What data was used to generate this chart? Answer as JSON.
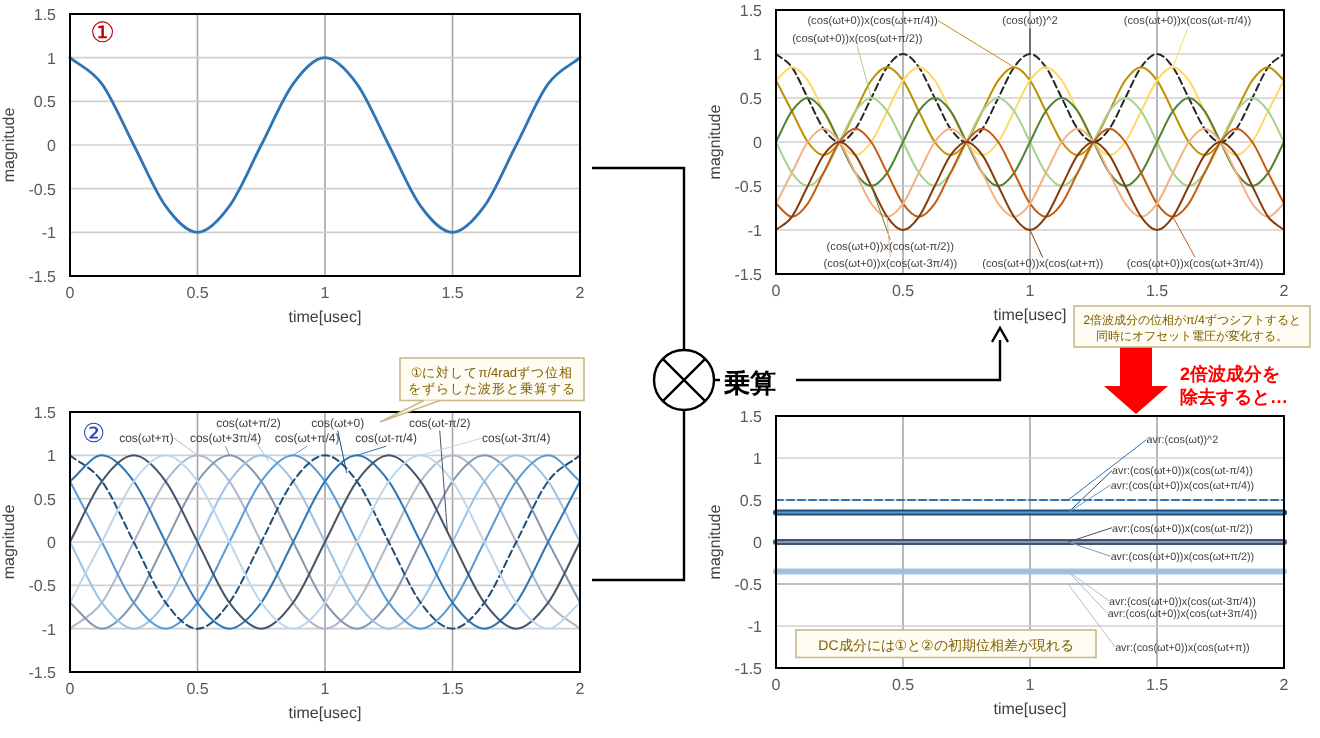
{
  "chart_data": [
    {
      "type": "line",
      "xlabel": "time[usec]",
      "ylabel": "magnitude",
      "xlim": [
        0,
        2
      ],
      "ylim": [
        -1.5,
        1.5
      ],
      "xticks": [
        0,
        0.5,
        1,
        1.5,
        2
      ],
      "yticks": [
        -1.5,
        -1,
        -0.5,
        0,
        0.5,
        1,
        1.5
      ],
      "grid": true,
      "marker": "none",
      "annotations": [
        "①"
      ],
      "x": [
        0,
        0.125,
        0.25,
        0.375,
        0.5,
        0.625,
        0.75,
        0.875,
        1,
        1.125,
        1.25,
        1.375,
        1.5,
        1.625,
        1.75,
        1.875,
        2
      ],
      "series": [
        {
          "color": "#2e75b6",
          "line_style": "solid",
          "values": [
            1,
            0.7,
            0,
            -0.7,
            -1,
            -0.7,
            0,
            0.7,
            1,
            0.7,
            0,
            -0.7,
            -1,
            -0.7,
            0,
            0.7,
            1
          ]
        }
      ]
    },
    {
      "type": "line",
      "xlabel": "time[usec]",
      "ylabel": "magnitude",
      "xlim": [
        0,
        2
      ],
      "ylim": [
        -1.5,
        1.5
      ],
      "xticks": [
        0,
        0.5,
        1,
        1.5,
        2
      ],
      "yticks": [
        -1.5,
        -1,
        -0.5,
        0,
        0.5,
        1,
        1.5
      ],
      "grid": true,
      "marker": "none",
      "annotations": [
        "②",
        "①に対してπ/4radずつ位相をずらした波形と乗算する",
        "乗算"
      ],
      "x": [
        0,
        0.125,
        0.25,
        0.375,
        0.5,
        0.625,
        0.75,
        0.875,
        1,
        1.125,
        1.25,
        1.375,
        1.5,
        1.625,
        1.75,
        1.875,
        2
      ],
      "series": [
        {
          "name": "cos(ωt+π)",
          "color": "#adb9ca",
          "line_style": "solid",
          "values": [
            -1,
            -0.7,
            0,
            0.7,
            1,
            0.7,
            0,
            -0.7,
            -1,
            -0.7,
            0,
            0.7,
            1,
            0.7,
            0,
            -0.7,
            -1
          ]
        },
        {
          "name": "cos(ωt+3π/4)",
          "color": "#8497b0",
          "line_style": "solid",
          "values": [
            -0.7,
            -1,
            -0.7,
            0,
            0.7,
            1,
            0.7,
            0,
            -0.7,
            -1,
            -0.7,
            0,
            0.7,
            1,
            0.7,
            0,
            -0.7
          ]
        },
        {
          "name": "cos(ωt+π/2)",
          "color": "#9dc3e6",
          "line_style": "solid",
          "values": [
            0,
            -0.7,
            -1,
            -0.7,
            0,
            0.7,
            1,
            0.7,
            0,
            -0.7,
            -1,
            -0.7,
            0,
            0.7,
            1,
            0.7,
            0
          ]
        },
        {
          "name": "cos(ωt+π/4)",
          "color": "#5b9bd5",
          "line_style": "solid",
          "values": [
            0.7,
            0,
            -0.7,
            -1,
            -0.7,
            0,
            0.7,
            1,
            0.7,
            0,
            -0.7,
            -1,
            -0.7,
            0,
            0.7,
            1,
            0.7
          ]
        },
        {
          "name": "cos(ωt+0)",
          "color": "#1f4e79",
          "line_style": "dashed",
          "values": [
            1,
            0.7,
            0,
            -0.7,
            -1,
            -0.7,
            0,
            0.7,
            1,
            0.7,
            0,
            -0.7,
            -1,
            -0.7,
            0,
            0.7,
            1
          ]
        },
        {
          "name": "cos(ωt-π/4)",
          "color": "#2e75b6",
          "line_style": "solid",
          "values": [
            0.7,
            1,
            0.7,
            0,
            -0.7,
            -1,
            -0.7,
            0,
            0.7,
            1,
            0.7,
            0,
            -0.7,
            -1,
            -0.7,
            0,
            0.7
          ]
        },
        {
          "name": "cos(ωt-π/2)",
          "color": "#44546a",
          "line_style": "solid",
          "values": [
            0,
            0.7,
            1,
            0.7,
            0,
            -0.7,
            -1,
            -0.7,
            0,
            0.7,
            1,
            0.7,
            0,
            -0.7,
            -1,
            -0.7,
            0
          ]
        },
        {
          "name": "cos(ωt-3π/4)",
          "color": "#bdd7ee",
          "line_style": "solid",
          "values": [
            -0.7,
            0,
            0.7,
            1,
            0.7,
            0,
            -0.7,
            -1,
            -0.7,
            0,
            0.7,
            1,
            0.7,
            0,
            -0.7,
            -1,
            -0.7
          ]
        }
      ]
    },
    {
      "type": "line",
      "xlabel": "time[usec]",
      "ylabel": "magnitude",
      "xlim": [
        0,
        2
      ],
      "ylim": [
        -1.5,
        1.5
      ],
      "xticks": [
        0,
        0.5,
        1,
        1.5,
        2
      ],
      "yticks": [
        -1.5,
        -1,
        -0.5,
        0,
        0.5,
        1,
        1.5
      ],
      "grid": true,
      "marker": "none",
      "annotations": [
        "2倍波成分の位相がπ/4ずつシフトすると同時にオフセット電圧が変化する。"
      ],
      "x": [
        0,
        0.0625,
        0.125,
        0.1875,
        0.25,
        0.3125,
        0.375,
        0.4375,
        0.5,
        0.5625,
        0.625,
        0.6875,
        0.75,
        0.8125,
        0.875,
        0.9375,
        1,
        1.0625,
        1.125,
        1.1875,
        1.25,
        1.3125,
        1.375,
        1.4375,
        1.5,
        1.5625,
        1.625,
        1.6875,
        1.75,
        1.8125,
        1.875,
        1.9375,
        2
      ],
      "series": [
        {
          "name": "(cos(ωt))^2",
          "color": "#262626",
          "line_style": "dashed",
          "values": [
            1,
            0.85,
            0.5,
            0.15,
            0,
            0.15,
            0.5,
            0.85,
            1,
            0.85,
            0.5,
            0.15,
            0,
            0.15,
            0.5,
            0.85,
            1,
            0.85,
            0.5,
            0.15,
            0,
            0.15,
            0.5,
            0.85,
            1,
            0.85,
            0.5,
            0.15,
            0,
            0.15,
            0.5,
            0.85,
            1
          ]
        },
        {
          "name": "(cos(ωt+0))x(cos(ωt+π/4))",
          "color": "#bf9000",
          "line_style": "solid",
          "values": [
            0.7,
            0.35,
            0,
            -0.15,
            0,
            0.35,
            0.7,
            0.85,
            0.7,
            0.35,
            0,
            -0.15,
            0,
            0.35,
            0.7,
            0.85,
            0.7,
            0.35,
            0,
            -0.15,
            0,
            0.35,
            0.7,
            0.85,
            0.7,
            0.35,
            0,
            -0.15,
            0,
            0.35,
            0.7,
            0.85,
            0.7
          ]
        },
        {
          "name": "(cos(ωt+0))x(cos(ωt-π/4))",
          "color": "#ffd966",
          "line_style": "solid",
          "values": [
            0.7,
            0.85,
            0.7,
            0.35,
            0,
            -0.15,
            0,
            0.35,
            0.7,
            0.85,
            0.7,
            0.35,
            0,
            -0.15,
            0,
            0.35,
            0.7,
            0.85,
            0.7,
            0.35,
            0,
            -0.15,
            0,
            0.35,
            0.7,
            0.85,
            0.7,
            0.35,
            0,
            -0.15,
            0,
            0.35,
            0.7
          ]
        },
        {
          "name": "(cos(ωt+0))x(cos(ωt+π/2))",
          "color": "#a9d18e",
          "line_style": "solid",
          "values": [
            0,
            -0.35,
            -0.5,
            -0.35,
            0,
            0.35,
            0.5,
            0.35,
            0,
            -0.35,
            -0.5,
            -0.35,
            0,
            0.35,
            0.5,
            0.35,
            0,
            -0.35,
            -0.5,
            -0.35,
            0,
            0.35,
            0.5,
            0.35,
            0,
            -0.35,
            -0.5,
            -0.35,
            0,
            0.35,
            0.5,
            0.35,
            0
          ]
        },
        {
          "name": "(cos(ωt+0))x(cos(ωt-π/2))",
          "color": "#548235",
          "line_style": "solid",
          "values": [
            0,
            0.35,
            0.5,
            0.35,
            0,
            -0.35,
            -0.5,
            -0.35,
            0,
            0.35,
            0.5,
            0.35,
            0,
            -0.35,
            -0.5,
            -0.35,
            0,
            0.35,
            0.5,
            0.35,
            0,
            -0.35,
            -0.5,
            -0.35,
            0,
            0.35,
            0.5,
            0.35,
            0,
            -0.35,
            -0.5,
            -0.35,
            0
          ]
        },
        {
          "name": "(cos(ωt+0))x(cos(ωt+3π/4))",
          "color": "#c55a11",
          "line_style": "solid",
          "values": [
            -0.7,
            -0.85,
            -0.7,
            -0.35,
            0,
            0.15,
            0,
            -0.35,
            -0.7,
            -0.85,
            -0.7,
            -0.35,
            0,
            0.15,
            0,
            -0.35,
            -0.7,
            -0.85,
            -0.7,
            -0.35,
            0,
            0.15,
            0,
            -0.35,
            -0.7,
            -0.85,
            -0.7,
            -0.35,
            0,
            0.15,
            0,
            -0.35,
            -0.7
          ]
        },
        {
          "name": "(cos(ωt+0))x(cos(ωt-3π/4))",
          "color": "#f4b183",
          "line_style": "solid",
          "values": [
            -0.7,
            -0.35,
            0,
            0.15,
            0,
            -0.35,
            -0.7,
            -0.85,
            -0.7,
            -0.35,
            0,
            0.15,
            0,
            -0.35,
            -0.7,
            -0.85,
            -0.7,
            -0.35,
            0,
            0.15,
            0,
            -0.35,
            -0.7,
            -0.85,
            -0.7,
            -0.35,
            0,
            0.15,
            0,
            -0.35,
            -0.7,
            -0.85,
            -0.7
          ]
        },
        {
          "name": "(cos(ωt+0))x(cos(ωt+π))",
          "color": "#843c0c",
          "line_style": "solid",
          "values": [
            -1,
            -0.85,
            -0.5,
            -0.15,
            0,
            -0.15,
            -0.5,
            -0.85,
            -1,
            -0.85,
            -0.5,
            -0.15,
            0,
            -0.15,
            -0.5,
            -0.85,
            -1,
            -0.85,
            -0.5,
            -0.15,
            0,
            -0.15,
            -0.5,
            -0.85,
            -1,
            -0.85,
            -0.5,
            -0.15,
            0,
            -0.15,
            -0.5,
            -0.85,
            -1
          ]
        }
      ]
    },
    {
      "type": "line",
      "xlabel": "time[usec]",
      "ylabel": "magnitude",
      "xlim": [
        0,
        2
      ],
      "ylim": [
        -1.5,
        1.5
      ],
      "xticks": [
        0,
        0.5,
        1,
        1.5,
        2
      ],
      "yticks": [
        -1.5,
        -1,
        -0.5,
        0,
        0.5,
        1,
        1.5
      ],
      "grid": true,
      "marker": "none",
      "annotations": [
        "2倍波成分を除去すると…",
        "DC成分には①と②の初期位相差が現れる"
      ],
      "x": [
        0,
        2
      ],
      "series": [
        {
          "name": "avr:(cos(ωt))^2",
          "color": "#2e75b6",
          "line_style": "dashed",
          "values": [
            0.5,
            0.5
          ]
        },
        {
          "name": "avr:(cos(ωt+0))x(cos(ωt-π/4))",
          "color": "#1f4e79",
          "line_style": "solid",
          "values": [
            0.35,
            0.35
          ]
        },
        {
          "name": "avr:(cos(ωt+0))x(cos(ωt+π/4))",
          "color": "#5b9bd5",
          "line_style": "solid",
          "values": [
            0.35,
            0.35
          ]
        },
        {
          "name": "avr:(cos(ωt+0))x(cos(ωt-π/2))",
          "color": "#44546a",
          "line_style": "solid",
          "values": [
            0,
            0
          ]
        },
        {
          "name": "avr:(cos(ωt+0))x(cos(ωt+π/2))",
          "color": "#8497b0",
          "line_style": "solid",
          "values": [
            0,
            0
          ]
        },
        {
          "name": "avr:(cos(ωt+0))x(cos(ωt-3π/4))",
          "color": "#9dc3e6",
          "line_style": "solid",
          "values": [
            -0.35,
            -0.35
          ]
        },
        {
          "name": "avr:(cos(ωt+0))x(cos(ωt+3π/4))",
          "color": "#adb9ca",
          "line_style": "solid",
          "values": [
            -0.35,
            -0.35
          ]
        },
        {
          "name": "avr:(cos(ωt+0))x(cos(ωt+π))",
          "color": "#bfbfbf",
          "line_style": "solid",
          "values": [
            -0.5,
            -0.5
          ]
        }
      ]
    }
  ]
}
